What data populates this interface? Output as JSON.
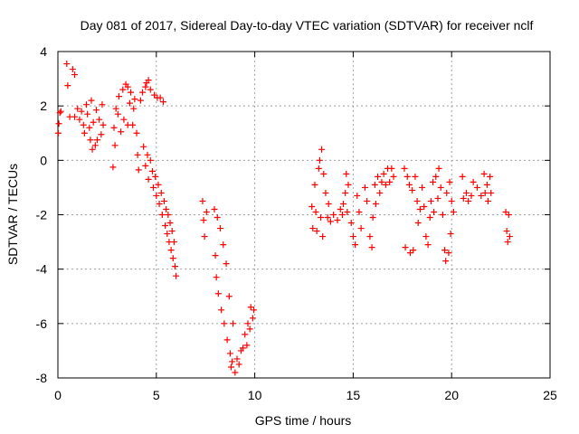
{
  "chart_data": {
    "type": "scatter",
    "title": "Day 081 of 2017, Sidereal Day-to-day VTEC variation (SDTVAR) for receiver nclf",
    "xlabel": "GPS time / hours",
    "ylabel": "SDTVAR / TECUs",
    "xlim": [
      0,
      25
    ],
    "ylim": [
      -8,
      4
    ],
    "x_ticks": [
      "0",
      "5",
      "10",
      "15",
      "20",
      "25"
    ],
    "y_ticks": [
      "4",
      "2",
      "0",
      "-2",
      "-4",
      "-6",
      "-8"
    ],
    "grid": true,
    "marker": "plus",
    "color": "#ff0000",
    "series": [
      {
        "points": [
          [
            0.02,
            1.0
          ],
          [
            0.05,
            1.35
          ],
          [
            0.1,
            1.75
          ],
          [
            0.15,
            1.8
          ],
          [
            0.45,
            3.55
          ],
          [
            0.5,
            2.75
          ],
          [
            0.6,
            1.6
          ],
          [
            0.75,
            3.35
          ],
          [
            0.85,
            3.15
          ],
          [
            0.85,
            1.6
          ],
          [
            1.0,
            1.9
          ],
          [
            1.1,
            1.5
          ],
          [
            1.2,
            1.8
          ],
          [
            1.3,
            1.3
          ],
          [
            1.35,
            1.0
          ],
          [
            1.45,
            2.05
          ],
          [
            1.5,
            1.7
          ],
          [
            1.6,
            1.2
          ],
          [
            1.65,
            0.75
          ],
          [
            1.7,
            2.2
          ],
          [
            1.75,
            0.4
          ],
          [
            1.8,
            1.4
          ],
          [
            1.9,
            0.55
          ],
          [
            1.95,
            1.85
          ],
          [
            2.0,
            0.75
          ],
          [
            2.1,
            1.5
          ],
          [
            2.2,
            0.95
          ],
          [
            2.25,
            2.05
          ],
          [
            2.3,
            1.3
          ],
          [
            2.8,
            -0.25
          ],
          [
            2.85,
            1.2
          ],
          [
            2.9,
            0.55
          ],
          [
            2.95,
            1.9
          ],
          [
            3.05,
            1.7
          ],
          [
            3.1,
            2.35
          ],
          [
            3.2,
            1.05
          ],
          [
            3.3,
            2.6
          ],
          [
            3.35,
            1.5
          ],
          [
            3.45,
            2.8
          ],
          [
            3.55,
            2.7
          ],
          [
            3.55,
            1.3
          ],
          [
            3.65,
            2.1
          ],
          [
            3.7,
            2.5
          ],
          [
            3.8,
            1.3
          ],
          [
            3.85,
            1.9
          ],
          [
            3.9,
            2.25
          ],
          [
            4.0,
            1.0
          ],
          [
            4.05,
            0.2
          ],
          [
            4.1,
            -0.35
          ],
          [
            4.2,
            2.2
          ],
          [
            4.3,
            2.5
          ],
          [
            4.35,
            0.5
          ],
          [
            4.45,
            2.7
          ],
          [
            4.45,
            -0.2
          ],
          [
            4.5,
            2.85
          ],
          [
            4.55,
            0.2
          ],
          [
            4.6,
            2.95
          ],
          [
            4.6,
            -0.7
          ],
          [
            4.7,
            0.0
          ],
          [
            4.7,
            2.6
          ],
          [
            4.8,
            -0.4
          ],
          [
            4.85,
            -1.0
          ],
          [
            4.9,
            2.4
          ],
          [
            4.95,
            -0.6
          ],
          [
            5.0,
            -1.3
          ],
          [
            5.05,
            2.3
          ],
          [
            5.1,
            -0.9
          ],
          [
            5.15,
            -1.6
          ],
          [
            5.2,
            2.3
          ],
          [
            5.25,
            -1.2
          ],
          [
            5.3,
            -2.0
          ],
          [
            5.35,
            2.15
          ],
          [
            5.4,
            -1.5
          ],
          [
            5.45,
            -2.4
          ],
          [
            5.5,
            -1.8
          ],
          [
            5.55,
            -2.7
          ],
          [
            5.6,
            -2.0
          ],
          [
            5.65,
            -3.0
          ],
          [
            5.7,
            -2.3
          ],
          [
            5.75,
            -3.3
          ],
          [
            5.8,
            -2.6
          ],
          [
            5.85,
            -3.6
          ],
          [
            5.9,
            -3.0
          ],
          [
            5.95,
            -3.9
          ],
          [
            6.0,
            -4.25
          ],
          [
            7.35,
            -1.5
          ],
          [
            7.4,
            -2.2
          ],
          [
            7.45,
            -2.8
          ],
          [
            7.55,
            -1.9
          ],
          [
            7.95,
            -1.8
          ],
          [
            8.0,
            -3.5
          ],
          [
            8.05,
            -4.3
          ],
          [
            8.1,
            -2.1
          ],
          [
            8.15,
            -4.9
          ],
          [
            8.25,
            -2.5
          ],
          [
            8.3,
            -5.5
          ],
          [
            8.4,
            -3.1
          ],
          [
            8.45,
            -6.0
          ],
          [
            8.55,
            -3.8
          ],
          [
            8.6,
            -6.6
          ],
          [
            8.7,
            -5.0
          ],
          [
            8.75,
            -7.1
          ],
          [
            8.8,
            -7.6
          ],
          [
            8.85,
            -7.4
          ],
          [
            8.9,
            -6.0
          ],
          [
            9.0,
            -7.8
          ],
          [
            9.1,
            -7.3
          ],
          [
            9.2,
            -7.5
          ],
          [
            9.3,
            -7.0
          ],
          [
            9.4,
            -6.9
          ],
          [
            9.5,
            -6.4
          ],
          [
            9.6,
            -6.8
          ],
          [
            9.65,
            -6.0
          ],
          [
            9.75,
            -6.2
          ],
          [
            9.8,
            -5.4
          ],
          [
            9.9,
            -5.8
          ],
          [
            9.95,
            -5.5
          ],
          [
            12.9,
            -1.7
          ],
          [
            12.95,
            -2.5
          ],
          [
            13.05,
            -0.9
          ],
          [
            13.1,
            -1.9
          ],
          [
            13.15,
            -2.6
          ],
          [
            13.25,
            -0.3
          ],
          [
            13.3,
            0.0
          ],
          [
            13.35,
            -2.1
          ],
          [
            13.4,
            0.4
          ],
          [
            13.45,
            -2.8
          ],
          [
            13.5,
            -0.5
          ],
          [
            13.6,
            -1.2
          ],
          [
            13.7,
            -2.1
          ],
          [
            13.75,
            -1.6
          ],
          [
            13.85,
            -2.25
          ],
          [
            14.0,
            -2.0
          ],
          [
            14.2,
            -2.2
          ],
          [
            14.35,
            -1.8
          ],
          [
            14.45,
            -2.0
          ],
          [
            14.5,
            -1.6
          ],
          [
            14.6,
            -1.2
          ],
          [
            14.65,
            -0.5
          ],
          [
            14.7,
            -1.9
          ],
          [
            14.75,
            -0.9
          ],
          [
            14.9,
            -2.3
          ],
          [
            15.0,
            -2.8
          ],
          [
            15.1,
            -3.1
          ],
          [
            15.2,
            -1.3
          ],
          [
            15.3,
            -1.9
          ],
          [
            15.4,
            -2.5
          ],
          [
            15.6,
            -1.0
          ],
          [
            15.7,
            -1.5
          ],
          [
            15.85,
            -2.8
          ],
          [
            15.95,
            -3.2
          ],
          [
            16.0,
            -2.1
          ],
          [
            16.1,
            -0.9
          ],
          [
            16.15,
            -1.6
          ],
          [
            16.25,
            -0.6
          ],
          [
            16.35,
            -1.2
          ],
          [
            16.45,
            -0.8
          ],
          [
            16.55,
            -0.5
          ],
          [
            16.65,
            -0.9
          ],
          [
            16.75,
            -0.3
          ],
          [
            16.85,
            -0.8
          ],
          [
            16.95,
            -0.3
          ],
          [
            17.05,
            -0.6
          ],
          [
            17.6,
            -0.3
          ],
          [
            17.65,
            -3.2
          ],
          [
            17.75,
            -0.6
          ],
          [
            17.85,
            -0.9
          ],
          [
            17.9,
            -3.4
          ],
          [
            18.0,
            -1.1
          ],
          [
            18.05,
            -3.3
          ],
          [
            18.15,
            -0.6
          ],
          [
            18.25,
            -1.5
          ],
          [
            18.3,
            -2.3
          ],
          [
            18.4,
            -1.8
          ],
          [
            18.5,
            -1.0
          ],
          [
            18.6,
            -1.7
          ],
          [
            18.7,
            -2.8
          ],
          [
            18.8,
            -3.1
          ],
          [
            18.9,
            -2.1
          ],
          [
            18.95,
            -1.5
          ],
          [
            19.05,
            -0.8
          ],
          [
            19.1,
            -1.9
          ],
          [
            19.2,
            -0.6
          ],
          [
            19.3,
            -1.4
          ],
          [
            19.35,
            -0.3
          ],
          [
            19.45,
            -1.0
          ],
          [
            19.55,
            -2.0
          ],
          [
            19.65,
            -3.3
          ],
          [
            19.7,
            -3.7
          ],
          [
            19.75,
            -1.2
          ],
          [
            19.85,
            -3.4
          ],
          [
            19.9,
            -0.8
          ],
          [
            19.95,
            -2.7
          ],
          [
            20.0,
            -1.5
          ],
          [
            20.1,
            -1.9
          ],
          [
            20.55,
            -0.6
          ],
          [
            20.6,
            -1.4
          ],
          [
            20.75,
            -1.2
          ],
          [
            20.85,
            -1.5
          ],
          [
            21.0,
            -1.3
          ],
          [
            21.1,
            -0.8
          ],
          [
            21.3,
            -1.0
          ],
          [
            21.5,
            -1.3
          ],
          [
            21.65,
            -0.5
          ],
          [
            21.7,
            -1.2
          ],
          [
            21.8,
            -0.9
          ],
          [
            21.85,
            -1.5
          ],
          [
            21.95,
            -0.6
          ],
          [
            22.0,
            -1.2
          ],
          [
            22.75,
            -1.9
          ],
          [
            22.8,
            -2.6
          ],
          [
            22.85,
            -3.0
          ],
          [
            22.9,
            -2.0
          ],
          [
            22.95,
            -2.8
          ]
        ]
      }
    ]
  }
}
